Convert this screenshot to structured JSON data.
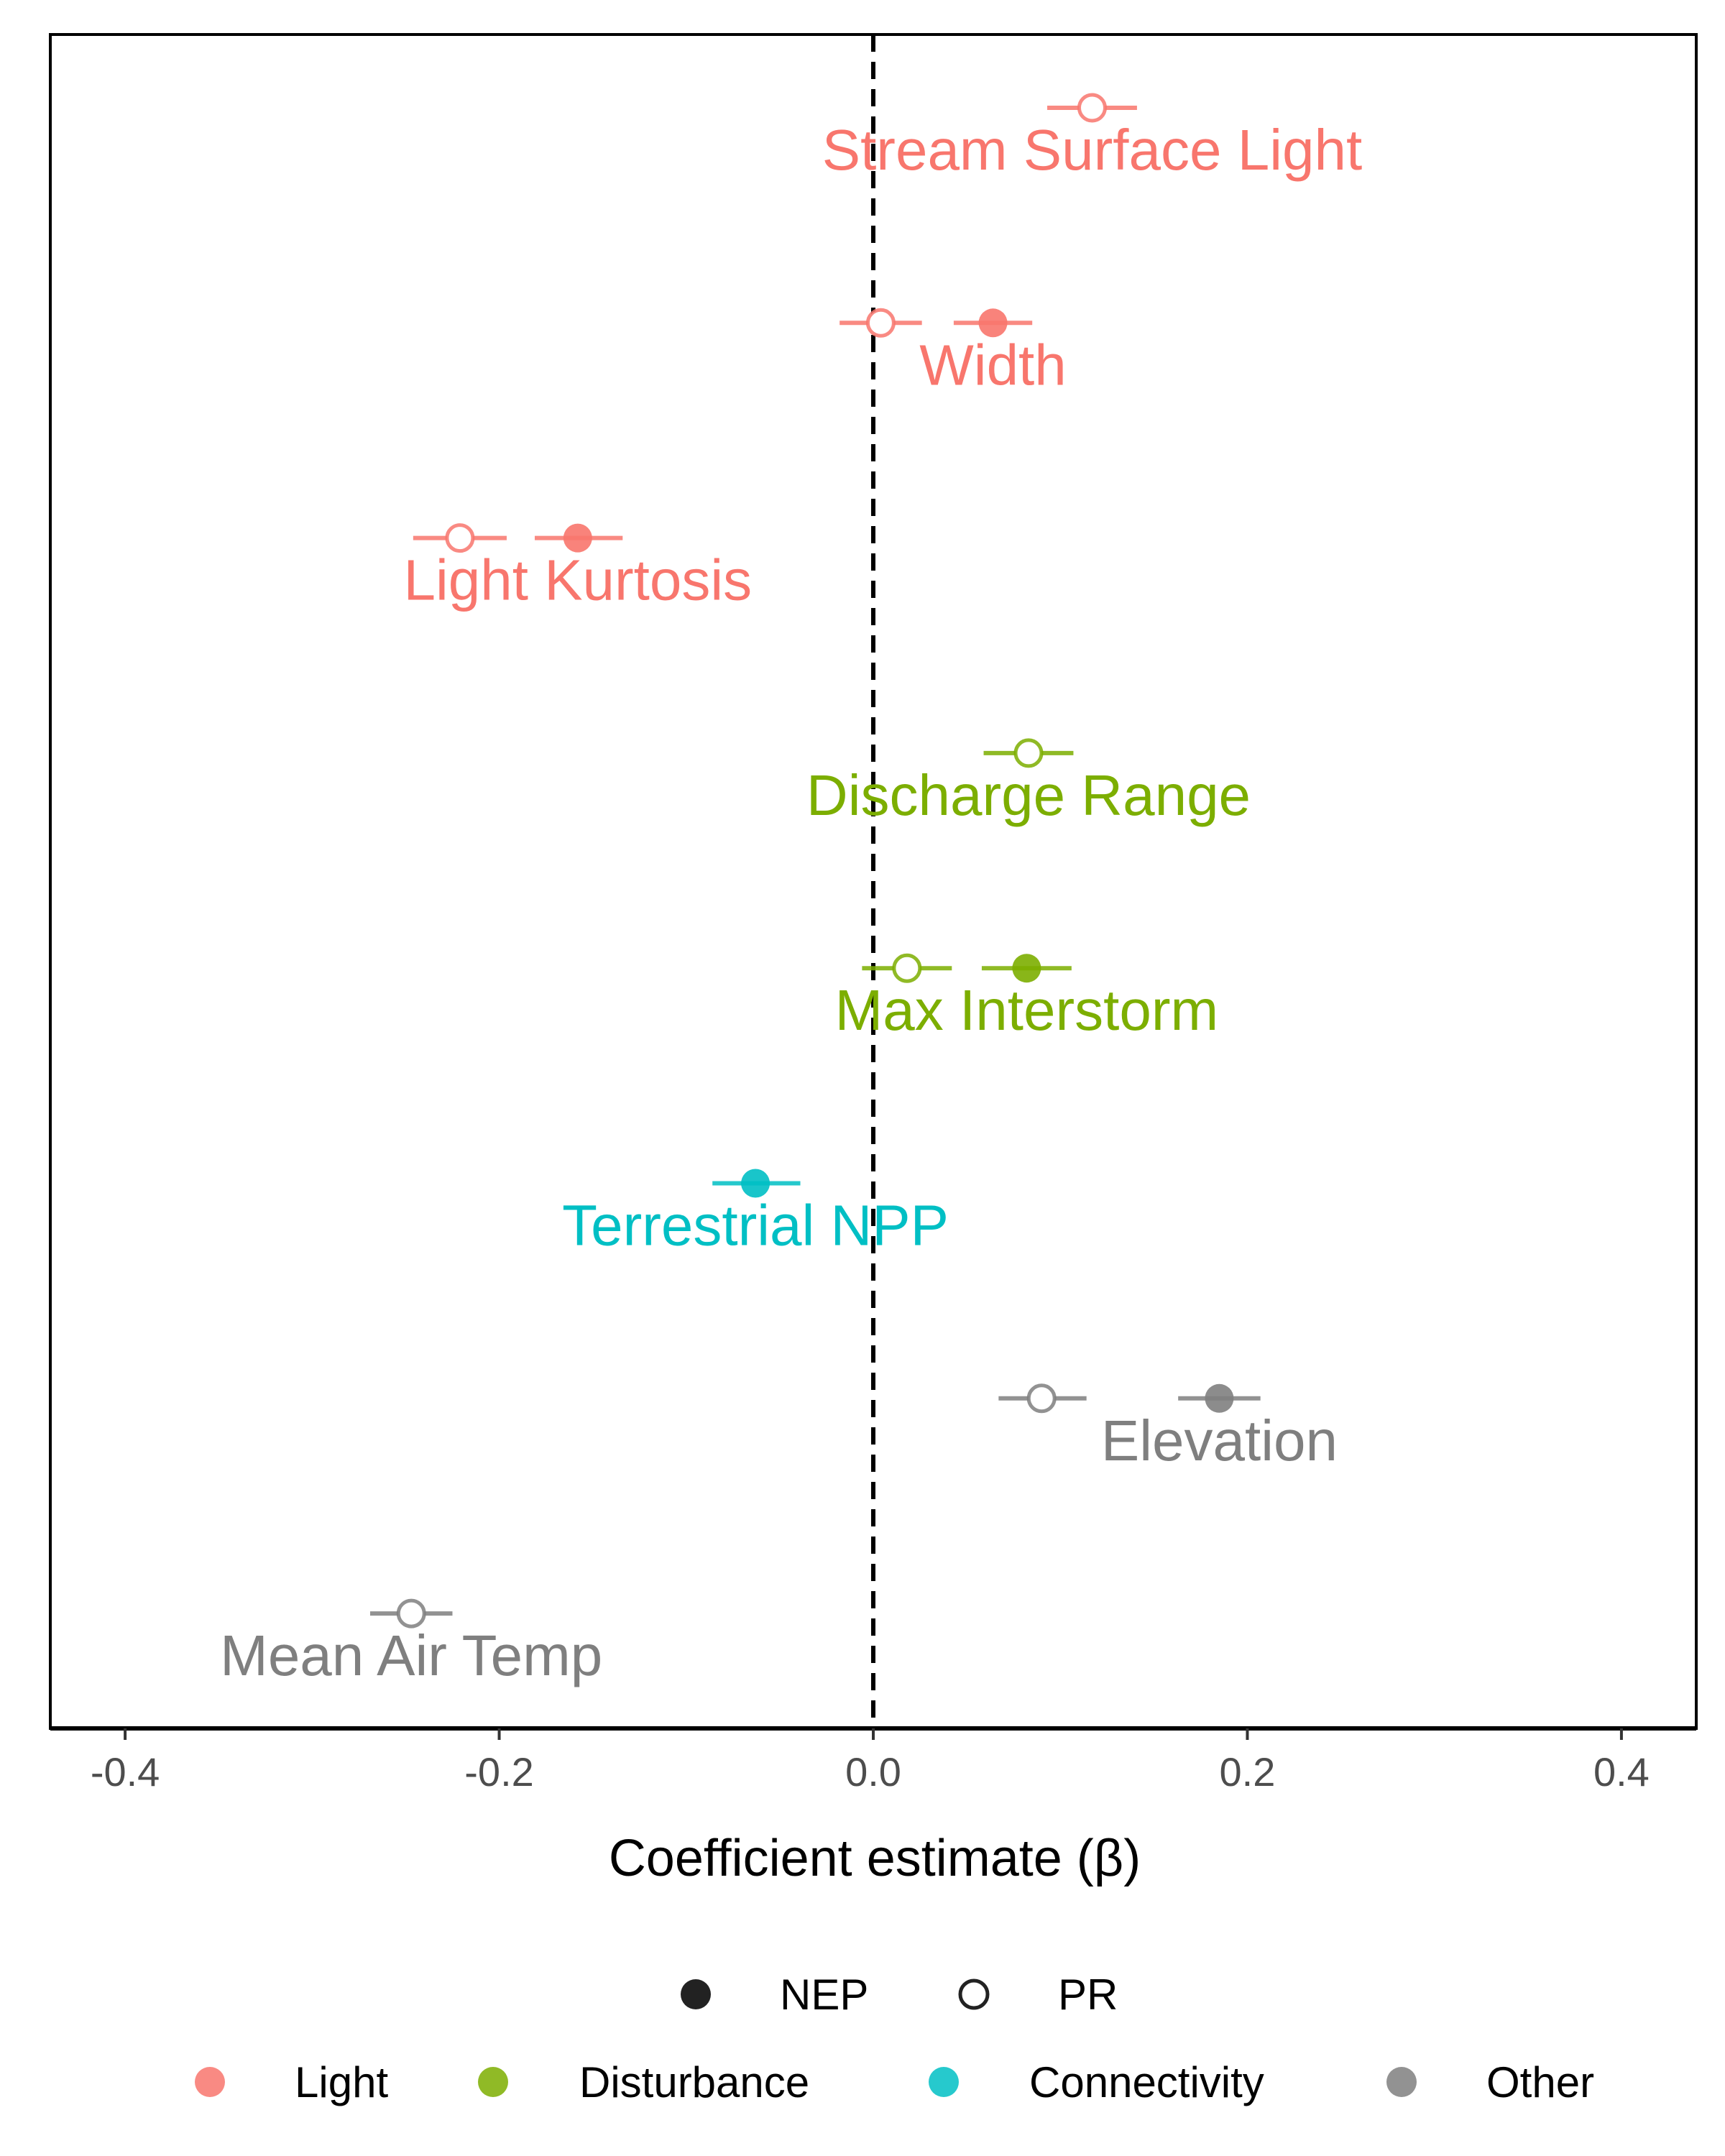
{
  "chart_data": {
    "type": "scatter",
    "title": "",
    "xlabel": "Coefficient estimate (β)",
    "ylabel": "",
    "xlim": [
      -0.44,
      0.44
    ],
    "x_ticks": [
      -0.4,
      -0.2,
      0.0,
      0.2,
      0.4
    ],
    "x_tick_labels": [
      "-0.4",
      "-0.2",
      "0.0",
      "0.2",
      "0.4"
    ],
    "reference_line": {
      "x": 0.0,
      "style": "dashed",
      "color": "#000000"
    },
    "grid": false,
    "legend_position": "bottom",
    "colors": {
      "Light": "#F8766D",
      "Disturbance": "#7CAE00",
      "Connectivity": "#00BFC4",
      "Other": "#7F7F7F"
    },
    "legends": {
      "shape": [
        {
          "label": "NEP",
          "fill": "filled"
        },
        {
          "label": "PR",
          "fill": "open"
        }
      ],
      "group": [
        {
          "label": "Light",
          "color": "#F8766D"
        },
        {
          "label": "Disturbance",
          "color": "#7CAE00"
        },
        {
          "label": "Connectivity",
          "color": "#00BFC4"
        },
        {
          "label": "Other",
          "color": "#7F7F7F"
        }
      ]
    },
    "variables": [
      {
        "label": "Stream Surface Light",
        "group": "Light",
        "label_x": 0.117,
        "estimates": [
          {
            "response": "PR",
            "value": 0.117,
            "lower": 0.093,
            "upper": 0.141
          }
        ]
      },
      {
        "label": "Width",
        "group": "Light",
        "label_x": 0.064,
        "estimates": [
          {
            "response": "PR",
            "value": 0.004,
            "lower": -0.018,
            "upper": 0.026
          },
          {
            "response": "NEP",
            "value": 0.064,
            "lower": 0.043,
            "upper": 0.085
          }
        ]
      },
      {
        "label": "Light Kurtosis",
        "group": "Light",
        "label_x": -0.158,
        "estimates": [
          {
            "response": "PR",
            "value": -0.221,
            "lower": -0.246,
            "upper": -0.196
          },
          {
            "response": "NEP",
            "value": -0.158,
            "lower": -0.181,
            "upper": -0.134
          }
        ]
      },
      {
        "label": "Discharge Range",
        "group": "Disturbance",
        "label_x": 0.083,
        "estimates": [
          {
            "response": "PR",
            "value": 0.083,
            "lower": 0.059,
            "upper": 0.107
          }
        ]
      },
      {
        "label": "Max Interstorm",
        "group": "Disturbance",
        "label_x": 0.082,
        "estimates": [
          {
            "response": "PR",
            "value": 0.018,
            "lower": -0.006,
            "upper": 0.042
          },
          {
            "response": "NEP",
            "value": 0.082,
            "lower": 0.058,
            "upper": 0.106
          }
        ]
      },
      {
        "label": "Terrestrial NPP",
        "group": "Connectivity",
        "label_x": -0.063,
        "estimates": [
          {
            "response": "NEP",
            "value": -0.063,
            "lower": -0.086,
            "upper": -0.039
          }
        ]
      },
      {
        "label": "Elevation",
        "group": "Other",
        "label_x": 0.185,
        "estimates": [
          {
            "response": "PR",
            "value": 0.09,
            "lower": 0.067,
            "upper": 0.114
          },
          {
            "response": "NEP",
            "value": 0.185,
            "lower": 0.163,
            "upper": 0.207
          }
        ]
      },
      {
        "label": "Mean Air Temp",
        "group": "Other",
        "label_x": -0.247,
        "estimates": [
          {
            "response": "PR",
            "value": -0.247,
            "lower": -0.269,
            "upper": -0.225
          }
        ]
      }
    ]
  }
}
